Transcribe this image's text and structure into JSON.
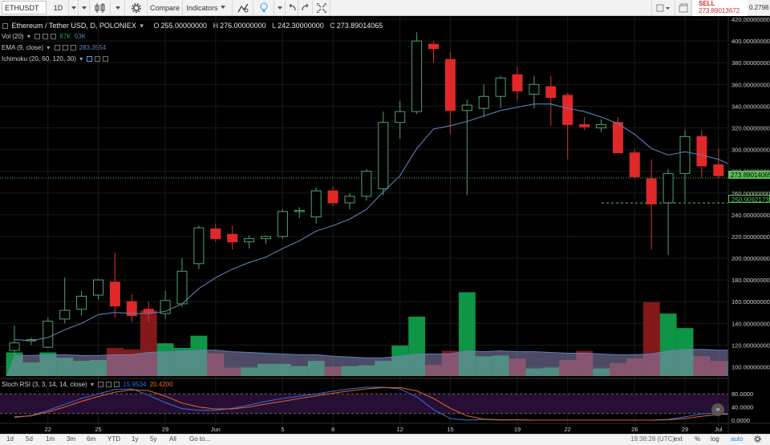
{
  "toolbar": {
    "symbol": "ETHUSDT",
    "interval": "1D",
    "compare_label": "Compare",
    "indicators_label": "Indicators",
    "sell_label": "SELL",
    "sell_price": "273.89013672",
    "right_value": "0.2798"
  },
  "legend": {
    "main_title": "Ethereum / Tether USD, D, POLONIEX",
    "o_label": "O",
    "o_value": "255.00000000",
    "h_label": "H",
    "h_value": "276.00000000",
    "l_label": "L",
    "l_value": "242.30000000",
    "c_label": "C",
    "c_value": "273.89014065",
    "vol_label": "Vol (20)",
    "vol_v1": "87K",
    "vol_v2": "93K",
    "ema_label": "EMA (9, close)",
    "ema_value": "283.3554",
    "ichimoku_label": "Ichimoku (20, 60, 120, 30)",
    "stoch_label": "Stoch RSI (3, 3, 14, 14, close)",
    "stoch_k": "15.9534",
    "stoch_d": "20.4200"
  },
  "price_tags": {
    "last": "273.89014065",
    "marker": "250.90921730"
  },
  "colors": {
    "up": "#26a69a",
    "down": "#ef3b3b",
    "vol_up": "#0f9d4a",
    "vol_down": "#8b1a1a",
    "ema": "#5d7fb5",
    "stoch_k": "#3d6fe0",
    "stoch_d": "#e06a2a",
    "price_tag": "#58c05a"
  },
  "chart_data": {
    "type": "candlestick",
    "title": "Ethereum / Tether USD, D, POLONIEX",
    "y_ticks": [
      "420.00000000",
      "400.00000000",
      "380.00000000",
      "360.00000000",
      "340.00000000",
      "320.00000000",
      "300.00000000",
      "280.00000000",
      "260.00000000",
      "240.00000000",
      "220.00000000",
      "200.00000000",
      "180.00000000",
      "160.00000000",
      "140.00000000",
      "120.00000000",
      "100.00000000"
    ],
    "ylim": [
      90,
      423
    ],
    "x_ticks": [
      {
        "label": "22",
        "index": 2
      },
      {
        "label": "25",
        "index": 5
      },
      {
        "label": "29",
        "index": 9
      },
      {
        "label": "Jun",
        "index": 12
      },
      {
        "label": "5",
        "index": 16
      },
      {
        "label": "8",
        "index": 19
      },
      {
        "label": "12",
        "index": 23
      },
      {
        "label": "15",
        "index": 26
      },
      {
        "label": "19",
        "index": 30
      },
      {
        "label": "22",
        "index": 33
      },
      {
        "label": "26",
        "index": 37
      },
      {
        "label": "29",
        "index": 40
      },
      {
        "label": "Jul",
        "index": 42
      }
    ],
    "candles": [
      {
        "o": 115,
        "h": 138,
        "l": 110,
        "c": 122
      },
      {
        "o": 124,
        "h": 127,
        "l": 120,
        "c": 125
      },
      {
        "o": 118,
        "h": 145,
        "l": 117,
        "c": 142
      },
      {
        "o": 144,
        "h": 182,
        "l": 140,
        "c": 152
      },
      {
        "o": 153,
        "h": 170,
        "l": 147,
        "c": 165
      },
      {
        "o": 166,
        "h": 181,
        "l": 162,
        "c": 180
      },
      {
        "o": 178,
        "h": 205,
        "l": 145,
        "c": 156
      },
      {
        "o": 160,
        "h": 167,
        "l": 141,
        "c": 147
      },
      {
        "o": 153,
        "h": 160,
        "l": 141,
        "c": 150
      },
      {
        "o": 149,
        "h": 170,
        "l": 144,
        "c": 161
      },
      {
        "o": 158,
        "h": 200,
        "l": 155,
        "c": 188
      },
      {
        "o": 195,
        "h": 230,
        "l": 190,
        "c": 228
      },
      {
        "o": 227,
        "h": 232,
        "l": 215,
        "c": 218
      },
      {
        "o": 222,
        "h": 230,
        "l": 208,
        "c": 215
      },
      {
        "o": 215,
        "h": 221,
        "l": 209,
        "c": 218
      },
      {
        "o": 218,
        "h": 221,
        "l": 213,
        "c": 220
      },
      {
        "o": 220,
        "h": 245,
        "l": 218,
        "c": 243
      },
      {
        "o": 243,
        "h": 247,
        "l": 237,
        "c": 244
      },
      {
        "o": 238,
        "h": 265,
        "l": 232,
        "c": 262
      },
      {
        "o": 262,
        "h": 266,
        "l": 248,
        "c": 251
      },
      {
        "o": 251,
        "h": 260,
        "l": 245,
        "c": 257
      },
      {
        "o": 257,
        "h": 282,
        "l": 253,
        "c": 280
      },
      {
        "o": 264,
        "h": 335,
        "l": 258,
        "c": 325
      },
      {
        "o": 325,
        "h": 345,
        "l": 310,
        "c": 335
      },
      {
        "o": 335,
        "h": 408,
        "l": 333,
        "c": 400
      },
      {
        "o": 397,
        "h": 400,
        "l": 380,
        "c": 393
      },
      {
        "o": 383,
        "h": 390,
        "l": 314,
        "c": 336
      },
      {
        "o": 336,
        "h": 346,
        "l": 258,
        "c": 341
      },
      {
        "o": 338,
        "h": 360,
        "l": 330,
        "c": 349
      },
      {
        "o": 349,
        "h": 368,
        "l": 338,
        "c": 366
      },
      {
        "o": 369,
        "h": 376,
        "l": 345,
        "c": 354
      },
      {
        "o": 351,
        "h": 368,
        "l": 338,
        "c": 360
      },
      {
        "o": 358,
        "h": 368,
        "l": 322,
        "c": 348
      },
      {
        "o": 350,
        "h": 352,
        "l": 291,
        "c": 323
      },
      {
        "o": 323,
        "h": 330,
        "l": 318,
        "c": 321
      },
      {
        "o": 320,
        "h": 328,
        "l": 316,
        "c": 323
      },
      {
        "o": 325,
        "h": 330,
        "l": 300,
        "c": 297
      },
      {
        "o": 297,
        "h": 300,
        "l": 274,
        "c": 275
      },
      {
        "o": 273,
        "h": 291,
        "l": 208,
        "c": 250
      },
      {
        "o": 251,
        "h": 282,
        "l": 203,
        "c": 278
      },
      {
        "o": 278,
        "h": 318,
        "l": 252,
        "c": 312
      },
      {
        "o": 312,
        "h": 318,
        "l": 274,
        "c": 285
      },
      {
        "o": 286,
        "h": 301,
        "l": 274,
        "c": 276
      },
      {
        "o": 276,
        "h": 290,
        "l": 241,
        "c": 255
      },
      {
        "o": 255,
        "h": 276,
        "l": 242,
        "c": 274
      }
    ],
    "ema": [
      125,
      124,
      127,
      134,
      140,
      148,
      150,
      149,
      149,
      151,
      158,
      172,
      182,
      190,
      196,
      201,
      209,
      216,
      225,
      230,
      236,
      245,
      261,
      276,
      301,
      319,
      322,
      326,
      331,
      336,
      339,
      342,
      342,
      338,
      335,
      330,
      324,
      314,
      301,
      295,
      298,
      295,
      291,
      284,
      283
    ],
    "volume": [
      {
        "v": 31,
        "up": true
      },
      {
        "v": 18,
        "up": true
      },
      {
        "v": 31,
        "up": true
      },
      {
        "v": 24,
        "up": true
      },
      {
        "v": 20,
        "up": true
      },
      {
        "v": 21,
        "up": true
      },
      {
        "v": 37,
        "up": false
      },
      {
        "v": 35,
        "up": false
      },
      {
        "v": 86,
        "up": false
      },
      {
        "v": 43,
        "up": true
      },
      {
        "v": 37,
        "up": true
      },
      {
        "v": 53,
        "up": true
      },
      {
        "v": 30,
        "up": false
      },
      {
        "v": 11,
        "up": false
      },
      {
        "v": 11,
        "up": true
      },
      {
        "v": 16,
        "up": true
      },
      {
        "v": 16,
        "up": true
      },
      {
        "v": 13,
        "up": true
      },
      {
        "v": 20,
        "up": true
      },
      {
        "v": 12,
        "up": false
      },
      {
        "v": 13,
        "up": true
      },
      {
        "v": 14,
        "up": true
      },
      {
        "v": 20,
        "up": true
      },
      {
        "v": 40,
        "up": true
      },
      {
        "v": 78,
        "up": true
      },
      {
        "v": 15,
        "up": false
      },
      {
        "v": 33,
        "up": false
      },
      {
        "v": 110,
        "up": true
      },
      {
        "v": 26,
        "up": true
      },
      {
        "v": 27,
        "up": true
      },
      {
        "v": 23,
        "up": false
      },
      {
        "v": 10,
        "up": true
      },
      {
        "v": 11,
        "up": true
      },
      {
        "v": 21,
        "up": false
      },
      {
        "v": 33,
        "up": false
      },
      {
        "v": 10,
        "up": true
      },
      {
        "v": 17,
        "up": false
      },
      {
        "v": 23,
        "up": false
      },
      {
        "v": 97,
        "up": false
      },
      {
        "v": 82,
        "up": true
      },
      {
        "v": 63,
        "up": true
      },
      {
        "v": 26,
        "up": false
      },
      {
        "v": 20,
        "up": false
      },
      {
        "v": 20,
        "up": true
      },
      {
        "v": 35,
        "up": true
      }
    ],
    "vol_ma": [
      27,
      27,
      28,
      28,
      27,
      27,
      28,
      28,
      31,
      32,
      33,
      34,
      34,
      32,
      31,
      30,
      29,
      28,
      28,
      26,
      25,
      24,
      24,
      26,
      29,
      29,
      29,
      33,
      32,
      33,
      32,
      32,
      31,
      30,
      30,
      29,
      28,
      28,
      29,
      33,
      35,
      35,
      34,
      34,
      34
    ],
    "stoch_k": [
      8,
      14,
      30,
      48,
      66,
      80,
      93,
      95,
      76,
      53,
      35,
      30,
      30,
      36,
      46,
      57,
      66,
      73,
      80,
      88,
      95,
      100,
      100,
      95,
      71,
      32,
      5,
      0,
      2,
      0,
      1,
      0,
      0,
      0,
      0,
      0,
      0,
      0,
      0,
      2,
      10,
      19,
      21,
      18,
      16
    ],
    "stoch_d": [
      10,
      13,
      25,
      40,
      57,
      72,
      85,
      92,
      90,
      73,
      52,
      40,
      34,
      34,
      40,
      49,
      57,
      66,
      74,
      82,
      89,
      95,
      99,
      99,
      89,
      66,
      36,
      13,
      3,
      1,
      1,
      0,
      0,
      0,
      0,
      0,
      0,
      0,
      0,
      1,
      5,
      12,
      17,
      19,
      20
    ],
    "stoch_ticks": [
      "80.0000",
      "40.0000",
      "0.0000"
    ]
  },
  "bottombar": {
    "ranges": [
      "1d",
      "5d",
      "1m",
      "3m",
      "6m",
      "YTD",
      "1y",
      "5y",
      "All"
    ],
    "goto_label": "Go to...",
    "clock": "19:38:28 (UTC)",
    "opt_ext": "ext",
    "opt_pct": "%",
    "opt_log": "log",
    "opt_auto": "auto"
  }
}
